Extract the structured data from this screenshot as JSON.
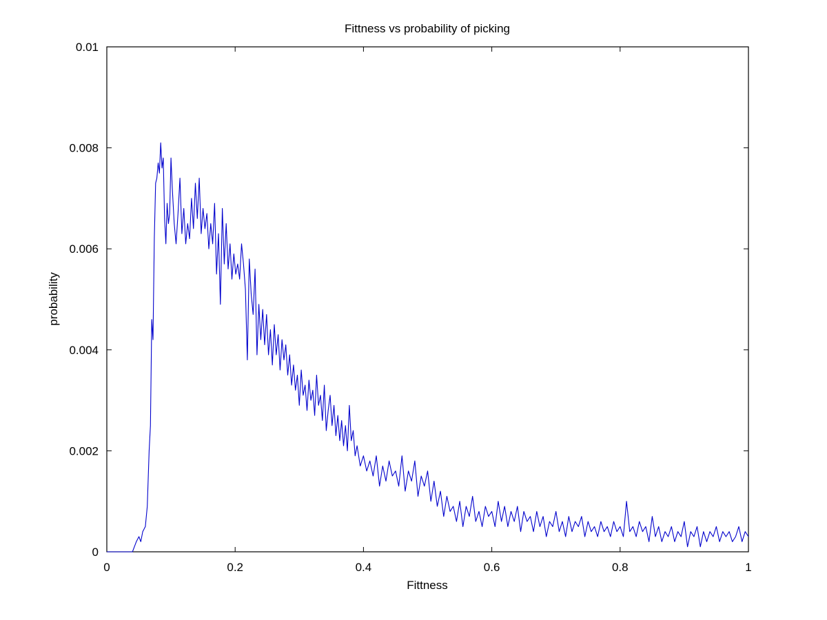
{
  "chart_data": {
    "type": "line",
    "title": "Fittness vs probability of picking",
    "xlabel": "Fittness",
    "ylabel": "probability",
    "xlim": [
      0,
      1
    ],
    "ylim": [
      0,
      0.01
    ],
    "grid": false,
    "legend": "none",
    "x_ticks": [
      {
        "value": 0,
        "label": "0"
      },
      {
        "value": 0.2,
        "label": "0.2"
      },
      {
        "value": 0.4,
        "label": "0.4"
      },
      {
        "value": 0.6,
        "label": "0.6"
      },
      {
        "value": 0.8,
        "label": "0.8"
      },
      {
        "value": 1,
        "label": "1"
      }
    ],
    "y_ticks": [
      {
        "value": 0,
        "label": "0"
      },
      {
        "value": 0.002,
        "label": "0.002"
      },
      {
        "value": 0.004,
        "label": "0.004"
      },
      {
        "value": 0.006,
        "label": "0.006"
      },
      {
        "value": 0.008,
        "label": "0.008"
      },
      {
        "value": 0.01,
        "label": "0.01"
      }
    ],
    "series": [
      {
        "color": "#0000cc",
        "x": [
          0,
          0.01,
          0.02,
          0.03,
          0.04,
          0.043,
          0.046,
          0.05,
          0.053,
          0.056,
          0.06,
          0.063,
          0.066,
          0.068,
          0.07,
          0.072,
          0.074,
          0.076,
          0.078,
          0.08,
          0.082,
          0.084,
          0.086,
          0.088,
          0.09,
          0.092,
          0.094,
          0.096,
          0.098,
          0.1,
          0.102,
          0.105,
          0.108,
          0.111,
          0.114,
          0.117,
          0.12,
          0.123,
          0.126,
          0.129,
          0.132,
          0.135,
          0.138,
          0.141,
          0.144,
          0.147,
          0.15,
          0.153,
          0.156,
          0.159,
          0.162,
          0.165,
          0.168,
          0.171,
          0.174,
          0.177,
          0.18,
          0.183,
          0.186,
          0.189,
          0.192,
          0.195,
          0.198,
          0.201,
          0.204,
          0.207,
          0.21,
          0.213,
          0.216,
          0.219,
          0.222,
          0.225,
          0.228,
          0.231,
          0.234,
          0.237,
          0.24,
          0.243,
          0.246,
          0.249,
          0.252,
          0.255,
          0.258,
          0.261,
          0.264,
          0.267,
          0.27,
          0.273,
          0.276,
          0.279,
          0.282,
          0.285,
          0.288,
          0.291,
          0.294,
          0.297,
          0.3,
          0.303,
          0.306,
          0.309,
          0.312,
          0.315,
          0.318,
          0.321,
          0.324,
          0.327,
          0.33,
          0.333,
          0.336,
          0.339,
          0.342,
          0.345,
          0.348,
          0.351,
          0.354,
          0.357,
          0.36,
          0.363,
          0.366,
          0.369,
          0.372,
          0.375,
          0.378,
          0.381,
          0.384,
          0.387,
          0.39,
          0.395,
          0.4,
          0.405,
          0.41,
          0.415,
          0.42,
          0.425,
          0.43,
          0.435,
          0.44,
          0.445,
          0.45,
          0.455,
          0.46,
          0.465,
          0.47,
          0.475,
          0.48,
          0.485,
          0.49,
          0.495,
          0.5,
          0.505,
          0.51,
          0.515,
          0.52,
          0.525,
          0.53,
          0.535,
          0.54,
          0.545,
          0.55,
          0.555,
          0.56,
          0.565,
          0.57,
          0.575,
          0.58,
          0.585,
          0.59,
          0.595,
          0.6,
          0.605,
          0.61,
          0.615,
          0.62,
          0.625,
          0.63,
          0.635,
          0.64,
          0.645,
          0.65,
          0.655,
          0.66,
          0.665,
          0.67,
          0.675,
          0.68,
          0.685,
          0.69,
          0.695,
          0.7,
          0.705,
          0.71,
          0.715,
          0.72,
          0.725,
          0.73,
          0.735,
          0.74,
          0.745,
          0.75,
          0.755,
          0.76,
          0.765,
          0.77,
          0.775,
          0.78,
          0.785,
          0.79,
          0.795,
          0.8,
          0.805,
          0.81,
          0.815,
          0.82,
          0.825,
          0.83,
          0.835,
          0.84,
          0.845,
          0.85,
          0.855,
          0.86,
          0.865,
          0.87,
          0.875,
          0.88,
          0.885,
          0.89,
          0.895,
          0.9,
          0.905,
          0.91,
          0.915,
          0.92,
          0.925,
          0.93,
          0.935,
          0.94,
          0.945,
          0.95,
          0.955,
          0.96,
          0.965,
          0.97,
          0.975,
          0.98,
          0.985,
          0.99,
          0.995,
          1.0
        ],
        "y": [
          0,
          0,
          0,
          0,
          0,
          0.0001,
          0.0002,
          0.0003,
          0.0002,
          0.0004,
          0.0005,
          0.0009,
          0.002,
          0.0025,
          0.0046,
          0.0042,
          0.0062,
          0.0073,
          0.0074,
          0.0077,
          0.0075,
          0.0081,
          0.0076,
          0.0078,
          0.0066,
          0.0061,
          0.0069,
          0.0065,
          0.0067,
          0.0078,
          0.0072,
          0.0065,
          0.0061,
          0.0067,
          0.0074,
          0.0063,
          0.0068,
          0.0061,
          0.0065,
          0.0062,
          0.007,
          0.0064,
          0.0073,
          0.0066,
          0.0074,
          0.0063,
          0.0068,
          0.0064,
          0.0067,
          0.006,
          0.0065,
          0.0061,
          0.0069,
          0.0055,
          0.0063,
          0.0049,
          0.0068,
          0.0057,
          0.0065,
          0.0056,
          0.0061,
          0.0054,
          0.0059,
          0.0055,
          0.0057,
          0.0054,
          0.0061,
          0.0057,
          0.0052,
          0.0038,
          0.0058,
          0.0051,
          0.0047,
          0.0056,
          0.0039,
          0.0049,
          0.0042,
          0.0048,
          0.0041,
          0.0047,
          0.0039,
          0.0044,
          0.0037,
          0.0045,
          0.0039,
          0.0043,
          0.0036,
          0.0042,
          0.0038,
          0.0041,
          0.0035,
          0.0039,
          0.0033,
          0.0037,
          0.0032,
          0.0035,
          0.0029,
          0.0036,
          0.0031,
          0.0033,
          0.0028,
          0.0034,
          0.003,
          0.0032,
          0.0027,
          0.0035,
          0.0029,
          0.0031,
          0.0026,
          0.0033,
          0.0024,
          0.0028,
          0.0031,
          0.0025,
          0.0029,
          0.0023,
          0.0027,
          0.0022,
          0.0026,
          0.0021,
          0.0025,
          0.002,
          0.0029,
          0.0022,
          0.0024,
          0.0019,
          0.0021,
          0.0017,
          0.0019,
          0.0016,
          0.0018,
          0.0015,
          0.0019,
          0.0013,
          0.0017,
          0.0014,
          0.0018,
          0.0015,
          0.0016,
          0.0013,
          0.0019,
          0.0012,
          0.0016,
          0.0014,
          0.0018,
          0.0011,
          0.0015,
          0.0013,
          0.0016,
          0.001,
          0.0014,
          0.0009,
          0.0012,
          0.0007,
          0.0011,
          0.0008,
          0.0009,
          0.0006,
          0.001,
          0.0005,
          0.0009,
          0.0007,
          0.0011,
          0.0006,
          0.0008,
          0.0005,
          0.0009,
          0.0007,
          0.0008,
          0.0005,
          0.001,
          0.0006,
          0.0009,
          0.0005,
          0.0008,
          0.0006,
          0.0009,
          0.0004,
          0.0008,
          0.0006,
          0.0007,
          0.0004,
          0.0008,
          0.0005,
          0.0007,
          0.0003,
          0.0006,
          0.0005,
          0.0008,
          0.0004,
          0.0006,
          0.0003,
          0.0007,
          0.0004,
          0.0006,
          0.0005,
          0.0007,
          0.0003,
          0.0006,
          0.0004,
          0.0005,
          0.0003,
          0.0006,
          0.0004,
          0.0005,
          0.0003,
          0.0006,
          0.0004,
          0.0005,
          0.0003,
          0.001,
          0.0004,
          0.0005,
          0.0003,
          0.0006,
          0.0004,
          0.0005,
          0.0002,
          0.0007,
          0.0003,
          0.0005,
          0.0002,
          0.0004,
          0.0003,
          0.0005,
          0.0002,
          0.0004,
          0.0003,
          0.0006,
          0.0001,
          0.0004,
          0.0003,
          0.0005,
          0.0001,
          0.0004,
          0.0002,
          0.0004,
          0.0003,
          0.0005,
          0.0002,
          0.0004,
          0.0003,
          0.0004,
          0.0002,
          0.0003,
          0.0005,
          0.0002,
          0.0004,
          0.0003
        ]
      }
    ]
  }
}
